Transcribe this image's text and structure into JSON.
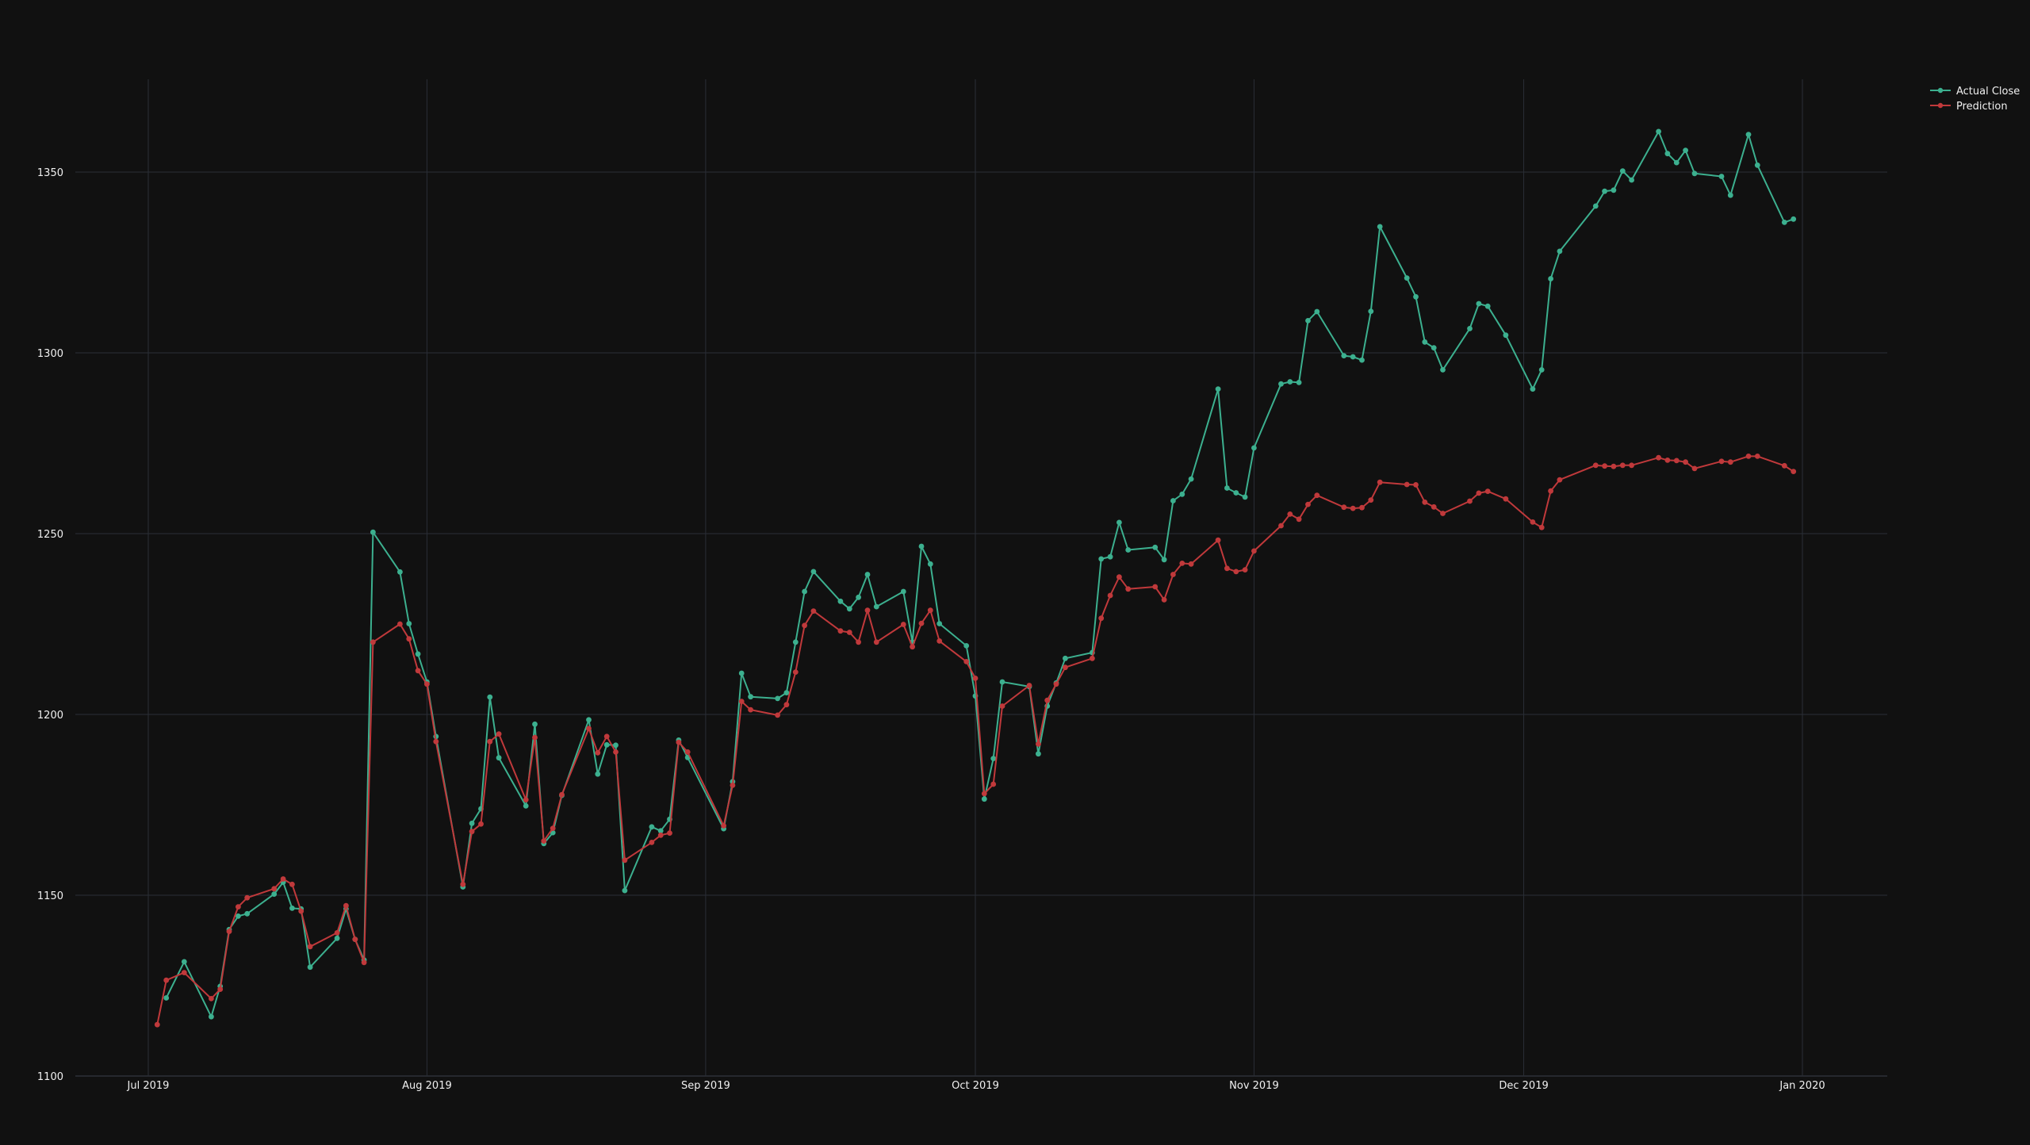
{
  "chart_data": {
    "type": "line",
    "title": "",
    "xlabel": "",
    "ylabel": "",
    "ylim": [
      1100,
      1375
    ],
    "xlim": [
      "2019-07-01",
      "2020-01-10"
    ],
    "grid": true,
    "legend_position": "top-right",
    "x_ticks": [
      {
        "date": "2019-07-01",
        "label": "Jul 2019"
      },
      {
        "date": "2019-08-01",
        "label": "Aug 2019"
      },
      {
        "date": "2019-09-01",
        "label": "Sep 2019"
      },
      {
        "date": "2019-10-01",
        "label": "Oct 2019"
      },
      {
        "date": "2019-11-01",
        "label": "Nov 2019"
      },
      {
        "date": "2019-12-01",
        "label": "Dec 2019"
      },
      {
        "date": "2020-01-01",
        "label": "Jan 2020"
      }
    ],
    "y_ticks": [
      1100,
      1150,
      1200,
      1250,
      1300,
      1350
    ],
    "series": [
      {
        "name": "Actual Close",
        "color": "#3cb08f",
        "points": [
          [
            "2019-07-03",
            1121.6
          ],
          [
            "2019-07-05",
            1131.6
          ],
          [
            "2019-07-08",
            1116.4
          ],
          [
            "2019-07-09",
            1124.8
          ],
          [
            "2019-07-10",
            1140.5
          ],
          [
            "2019-07-11",
            1144.2
          ],
          [
            "2019-07-12",
            1144.9
          ],
          [
            "2019-07-15",
            1150.3
          ],
          [
            "2019-07-16",
            1153.6
          ],
          [
            "2019-07-17",
            1146.4
          ],
          [
            "2019-07-18",
            1146.2
          ],
          [
            "2019-07-19",
            1130.1
          ],
          [
            "2019-07-22",
            1138.1
          ],
          [
            "2019-07-23",
            1146.2
          ],
          [
            "2019-07-24",
            1137.8
          ],
          [
            "2019-07-25",
            1132.1
          ],
          [
            "2019-07-26",
            1250.4
          ],
          [
            "2019-07-29",
            1239.4
          ],
          [
            "2019-07-30",
            1225.1
          ],
          [
            "2019-07-31",
            1216.7
          ],
          [
            "2019-08-01",
            1209.0
          ],
          [
            "2019-08-02",
            1193.9
          ],
          [
            "2019-08-05",
            1152.3
          ],
          [
            "2019-08-06",
            1169.9
          ],
          [
            "2019-08-07",
            1173.9
          ],
          [
            "2019-08-08",
            1204.8
          ],
          [
            "2019-08-09",
            1188.0
          ],
          [
            "2019-08-12",
            1174.7
          ],
          [
            "2019-08-13",
            1197.3
          ],
          [
            "2019-08-14",
            1164.3
          ],
          [
            "2019-08-15",
            1167.3
          ],
          [
            "2019-08-16",
            1177.6
          ],
          [
            "2019-08-19",
            1198.5
          ],
          [
            "2019-08-20",
            1183.5
          ],
          [
            "2019-08-21",
            1191.6
          ],
          [
            "2019-08-22",
            1191.5
          ],
          [
            "2019-08-23",
            1151.3
          ],
          [
            "2019-08-26",
            1168.9
          ],
          [
            "2019-08-27",
            1167.8
          ],
          [
            "2019-08-28",
            1171.0
          ],
          [
            "2019-08-29",
            1192.9
          ],
          [
            "2019-08-30",
            1188.1
          ],
          [
            "2019-09-03",
            1168.4
          ],
          [
            "2019-09-04",
            1181.4
          ],
          [
            "2019-09-05",
            1211.4
          ],
          [
            "2019-09-06",
            1204.9
          ],
          [
            "2019-09-09",
            1204.4
          ],
          [
            "2019-09-10",
            1206.0
          ],
          [
            "2019-09-11",
            1220.0
          ],
          [
            "2019-09-12",
            1234.0
          ],
          [
            "2019-09-13",
            1239.5
          ],
          [
            "2019-09-16",
            1231.3
          ],
          [
            "2019-09-17",
            1229.2
          ],
          [
            "2019-09-18",
            1232.4
          ],
          [
            "2019-09-19",
            1238.7
          ],
          [
            "2019-09-20",
            1229.8
          ],
          [
            "2019-09-23",
            1234.0
          ],
          [
            "2019-09-24",
            1220.0
          ],
          [
            "2019-09-25",
            1246.5
          ],
          [
            "2019-09-26",
            1241.6
          ],
          [
            "2019-09-27",
            1225.1
          ],
          [
            "2019-09-30",
            1219.0
          ],
          [
            "2019-10-01",
            1205.1
          ],
          [
            "2019-10-02",
            1176.6
          ],
          [
            "2019-10-03",
            1187.8
          ],
          [
            "2019-10-04",
            1209.0
          ],
          [
            "2019-10-07",
            1207.7
          ],
          [
            "2019-10-08",
            1189.1
          ],
          [
            "2019-10-09",
            1202.3
          ],
          [
            "2019-10-10",
            1208.7
          ],
          [
            "2019-10-11",
            1215.5
          ],
          [
            "2019-10-14",
            1217.1
          ],
          [
            "2019-10-15",
            1243.0
          ],
          [
            "2019-10-16",
            1243.6
          ],
          [
            "2019-10-17",
            1253.1
          ],
          [
            "2019-10-18",
            1245.5
          ],
          [
            "2019-10-21",
            1246.2
          ],
          [
            "2019-10-22",
            1242.8
          ],
          [
            "2019-10-23",
            1259.1
          ],
          [
            "2019-10-24",
            1260.9
          ],
          [
            "2019-10-25",
            1265.1
          ],
          [
            "2019-10-28",
            1290.0
          ],
          [
            "2019-10-29",
            1262.6
          ],
          [
            "2019-10-30",
            1261.3
          ],
          [
            "2019-10-31",
            1260.1
          ],
          [
            "2019-11-01",
            1273.7
          ],
          [
            "2019-11-04",
            1291.4
          ],
          [
            "2019-11-05",
            1292.0
          ],
          [
            "2019-11-06",
            1291.8
          ],
          [
            "2019-11-07",
            1308.9
          ],
          [
            "2019-11-08",
            1311.4
          ],
          [
            "2019-11-11",
            1299.2
          ],
          [
            "2019-11-12",
            1298.9
          ],
          [
            "2019-11-13",
            1298.0
          ],
          [
            "2019-11-14",
            1311.5
          ],
          [
            "2019-11-15",
            1334.9
          ],
          [
            "2019-11-18",
            1320.7
          ],
          [
            "2019-11-19",
            1315.5
          ],
          [
            "2019-11-20",
            1303.0
          ],
          [
            "2019-11-21",
            1301.4
          ],
          [
            "2019-11-22",
            1295.3
          ],
          [
            "2019-11-25",
            1306.7
          ],
          [
            "2019-11-26",
            1313.6
          ],
          [
            "2019-11-27",
            1312.9
          ],
          [
            "2019-11-29",
            1304.9
          ],
          [
            "2019-12-02",
            1290.0
          ],
          [
            "2019-12-03",
            1295.3
          ],
          [
            "2019-12-04",
            1320.5
          ],
          [
            "2019-12-05",
            1328.1
          ],
          [
            "2019-12-09",
            1340.6
          ],
          [
            "2019-12-10",
            1344.7
          ],
          [
            "2019-12-11",
            1345.0
          ],
          [
            "2019-12-12",
            1350.3
          ],
          [
            "2019-12-13",
            1347.8
          ],
          [
            "2019-12-16",
            1361.2
          ],
          [
            "2019-12-17",
            1355.1
          ],
          [
            "2019-12-18",
            1352.6
          ],
          [
            "2019-12-19",
            1356.0
          ],
          [
            "2019-12-20",
            1349.6
          ],
          [
            "2019-12-23",
            1348.8
          ],
          [
            "2019-12-24",
            1343.6
          ],
          [
            "2019-12-26",
            1360.4
          ],
          [
            "2019-12-27",
            1351.9
          ],
          [
            "2019-12-30",
            1336.1
          ],
          [
            "2019-12-31",
            1337.0
          ]
        ]
      },
      {
        "name": "Prediction",
        "color": "#c0393b",
        "points": [
          [
            "2019-07-02",
            1114.2
          ],
          [
            "2019-07-03",
            1126.5
          ],
          [
            "2019-07-05",
            1128.6
          ],
          [
            "2019-07-08",
            1121.4
          ],
          [
            "2019-07-09",
            1124.0
          ],
          [
            "2019-07-10",
            1140.0
          ],
          [
            "2019-07-11",
            1146.8
          ],
          [
            "2019-07-12",
            1149.3
          ],
          [
            "2019-07-15",
            1151.8
          ],
          [
            "2019-07-16",
            1154.5
          ],
          [
            "2019-07-17",
            1153.0
          ],
          [
            "2019-07-18",
            1145.6
          ],
          [
            "2019-07-19",
            1135.8
          ],
          [
            "2019-07-22",
            1139.6
          ],
          [
            "2019-07-23",
            1147.1
          ],
          [
            "2019-07-24",
            1137.8
          ],
          [
            "2019-07-25",
            1131.4
          ],
          [
            "2019-07-26",
            1220.0
          ],
          [
            "2019-07-29",
            1225.0
          ],
          [
            "2019-07-30",
            1220.9
          ],
          [
            "2019-07-31",
            1212.1
          ],
          [
            "2019-08-01",
            1208.4
          ],
          [
            "2019-08-02",
            1192.5
          ],
          [
            "2019-08-05",
            1153.0
          ],
          [
            "2019-08-06",
            1167.6
          ],
          [
            "2019-08-07",
            1169.7
          ],
          [
            "2019-08-08",
            1192.5
          ],
          [
            "2019-08-09",
            1194.6
          ],
          [
            "2019-08-12",
            1176.4
          ],
          [
            "2019-08-13",
            1193.6
          ],
          [
            "2019-08-14",
            1165.0
          ],
          [
            "2019-08-15",
            1168.5
          ],
          [
            "2019-08-16",
            1177.8
          ],
          [
            "2019-08-19",
            1196.1
          ],
          [
            "2019-08-20",
            1189.4
          ],
          [
            "2019-08-21",
            1193.9
          ],
          [
            "2019-08-22",
            1189.6
          ],
          [
            "2019-08-23",
            1159.7
          ],
          [
            "2019-08-26",
            1164.6
          ],
          [
            "2019-08-27",
            1166.6
          ],
          [
            "2019-08-28",
            1167.2
          ],
          [
            "2019-08-29",
            1192.3
          ],
          [
            "2019-08-30",
            1189.6
          ],
          [
            "2019-09-03",
            1169.2
          ],
          [
            "2019-09-04",
            1180.4
          ],
          [
            "2019-09-05",
            1203.6
          ],
          [
            "2019-09-06",
            1201.3
          ],
          [
            "2019-09-09",
            1199.8
          ],
          [
            "2019-09-10",
            1202.7
          ],
          [
            "2019-09-11",
            1211.7
          ],
          [
            "2019-09-12",
            1224.6
          ],
          [
            "2019-09-13",
            1228.6
          ],
          [
            "2019-09-16",
            1223.1
          ],
          [
            "2019-09-17",
            1222.7
          ],
          [
            "2019-09-18",
            1220.0
          ],
          [
            "2019-09-19",
            1228.8
          ],
          [
            "2019-09-20",
            1220.0
          ],
          [
            "2019-09-23",
            1224.9
          ],
          [
            "2019-09-24",
            1218.7
          ],
          [
            "2019-09-25",
            1225.2
          ],
          [
            "2019-09-26",
            1228.8
          ],
          [
            "2019-09-27",
            1220.3
          ],
          [
            "2019-09-30",
            1214.6
          ],
          [
            "2019-10-01",
            1210.0
          ],
          [
            "2019-10-02",
            1178.1
          ],
          [
            "2019-10-03",
            1180.7
          ],
          [
            "2019-10-04",
            1202.3
          ],
          [
            "2019-10-07",
            1208.0
          ],
          [
            "2019-10-08",
            1191.8
          ],
          [
            "2019-10-09",
            1203.9
          ],
          [
            "2019-10-10",
            1208.4
          ],
          [
            "2019-10-11",
            1213.0
          ],
          [
            "2019-10-14",
            1215.5
          ],
          [
            "2019-10-15",
            1226.6
          ],
          [
            "2019-10-16",
            1232.9
          ],
          [
            "2019-10-17",
            1238.0
          ],
          [
            "2019-10-18",
            1234.7
          ],
          [
            "2019-10-21",
            1235.3
          ],
          [
            "2019-10-22",
            1231.7
          ],
          [
            "2019-10-23",
            1238.7
          ],
          [
            "2019-10-24",
            1241.8
          ],
          [
            "2019-10-25",
            1241.6
          ],
          [
            "2019-10-28",
            1248.2
          ],
          [
            "2019-10-29",
            1240.4
          ],
          [
            "2019-10-30",
            1239.5
          ],
          [
            "2019-10-31",
            1240.0
          ],
          [
            "2019-11-01",
            1245.2
          ],
          [
            "2019-11-04",
            1252.2
          ],
          [
            "2019-11-05",
            1255.4
          ],
          [
            "2019-11-06",
            1254.0
          ],
          [
            "2019-11-07",
            1258.1
          ],
          [
            "2019-11-08",
            1260.6
          ],
          [
            "2019-11-11",
            1257.3
          ],
          [
            "2019-11-12",
            1257.0
          ],
          [
            "2019-11-13",
            1257.2
          ],
          [
            "2019-11-14",
            1259.3
          ],
          [
            "2019-11-15",
            1264.2
          ],
          [
            "2019-11-18",
            1263.6
          ],
          [
            "2019-11-19",
            1263.5
          ],
          [
            "2019-11-20",
            1258.7
          ],
          [
            "2019-11-21",
            1257.4
          ],
          [
            "2019-11-22",
            1255.6
          ],
          [
            "2019-11-25",
            1259.0
          ],
          [
            "2019-11-26",
            1261.2
          ],
          [
            "2019-11-27",
            1261.7
          ],
          [
            "2019-11-29",
            1259.6
          ],
          [
            "2019-12-02",
            1253.2
          ],
          [
            "2019-12-03",
            1251.7
          ],
          [
            "2019-12-04",
            1261.8
          ],
          [
            "2019-12-05",
            1264.9
          ],
          [
            "2019-12-09",
            1268.9
          ],
          [
            "2019-12-10",
            1268.7
          ],
          [
            "2019-12-11",
            1268.6
          ],
          [
            "2019-12-12",
            1268.9
          ],
          [
            "2019-12-13",
            1268.9
          ],
          [
            "2019-12-16",
            1271.0
          ],
          [
            "2019-12-17",
            1270.3
          ],
          [
            "2019-12-18",
            1270.2
          ],
          [
            "2019-12-19",
            1269.8
          ],
          [
            "2019-12-20",
            1268.0
          ],
          [
            "2019-12-23",
            1270.0
          ],
          [
            "2019-12-24",
            1269.8
          ],
          [
            "2019-12-26",
            1271.4
          ],
          [
            "2019-12-27",
            1271.4
          ],
          [
            "2019-12-30",
            1268.8
          ],
          [
            "2019-12-31",
            1267.2
          ]
        ]
      }
    ]
  }
}
